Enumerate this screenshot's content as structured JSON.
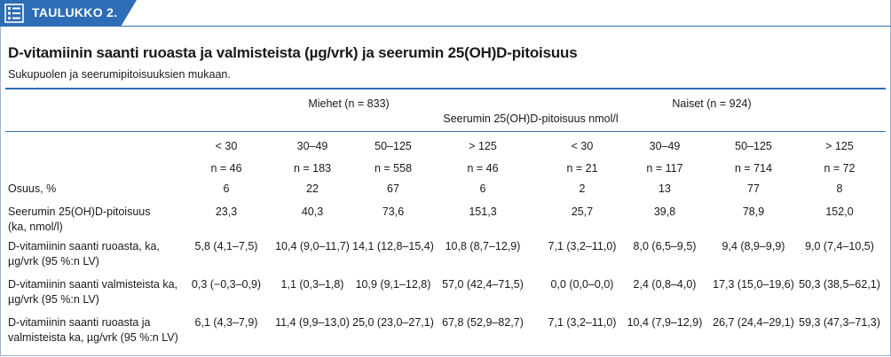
{
  "tab": {
    "label": "TAULUKKO 2.",
    "icon": "table-list-icon"
  },
  "title": "D-vitamiinin saanti ruoasta ja valmisteista (µg/vrk) ja seerumin 25(OH)D-pitoisuus",
  "subtitle": "Sukupuolen ja seerumipitoisuuksien mukaan.",
  "header": {
    "men": "Miehet (n = 833)",
    "women": "Naiset (n = 924)",
    "serum": "Seerumin 25(OH)D-pitoisuus nmol/l"
  },
  "columns": {
    "ranges": [
      "< 30",
      "30–49",
      "50–125",
      "> 125",
      "< 30",
      "30–49",
      "50–125",
      "> 125"
    ],
    "counts": [
      "n = 46",
      "n = 183",
      "n = 558",
      "n = 46",
      "n = 21",
      "n = 117",
      "n = 714",
      "n = 72"
    ]
  },
  "rows": [
    {
      "label": [
        "Osuus, %"
      ],
      "values": [
        "6",
        "22",
        "67",
        "6",
        "2",
        "13",
        "77",
        "8"
      ]
    },
    {
      "label": [
        "Seerumin 25(OH)D-pitoisuus",
        "(ka, nmol/l)"
      ],
      "values": [
        "23,3",
        "40,3",
        "73,6",
        "151,3",
        "25,7",
        "39,8",
        "78,9",
        "152,0"
      ]
    },
    {
      "label": [
        "D-vitamiinin saanti ruoasta, ka,",
        "µg/vrk (95 %:n LV)"
      ],
      "values": [
        "5,8 (4,1–7,5)",
        "10,4 (9,0–11,7)",
        "14,1 (12,8–15,4)",
        "10,8 (8,7–12,9)",
        "7,1 (3,2–11,0)",
        "8,0 (6,5–9,5)",
        "9,4 (8,9–9,9)",
        "9,0 (7,4–10,5)"
      ]
    },
    {
      "label": [
        "D-vitamiinin saanti valmisteista ka,",
        "µg/vrk (95 %:n LV)"
      ],
      "values": [
        "0,3 (−0,3–0,9)",
        "1,1 (0,3–1,8)",
        "10,9 (9,1–12,8)",
        "57,0 (42,4–71,5)",
        "0,0 (0,0–0,0)",
        "2,4 (0,8–4,0)",
        "17,3 (15,0–19,6)",
        "50,3 (38,5–62,1)"
      ]
    },
    {
      "label": [
        "D-vitamiinin saanti ruoasta ja",
        "valmisteista ka, µg/vrk (95 %:n LV)"
      ],
      "values": [
        "6,1 (4,3–7,9)",
        "11,4 (9,9–13,0)",
        "25,0 (23,0–27,1)",
        "67,8 (52,9–82,7)",
        "7,1 (3,2–11,0)",
        "10,4 (7,9–12,9)",
        "26,7 (24,4–29,1)",
        "59,3 (47,3–71,3)"
      ]
    }
  ],
  "colors": {
    "accent": "#2d6db5"
  }
}
